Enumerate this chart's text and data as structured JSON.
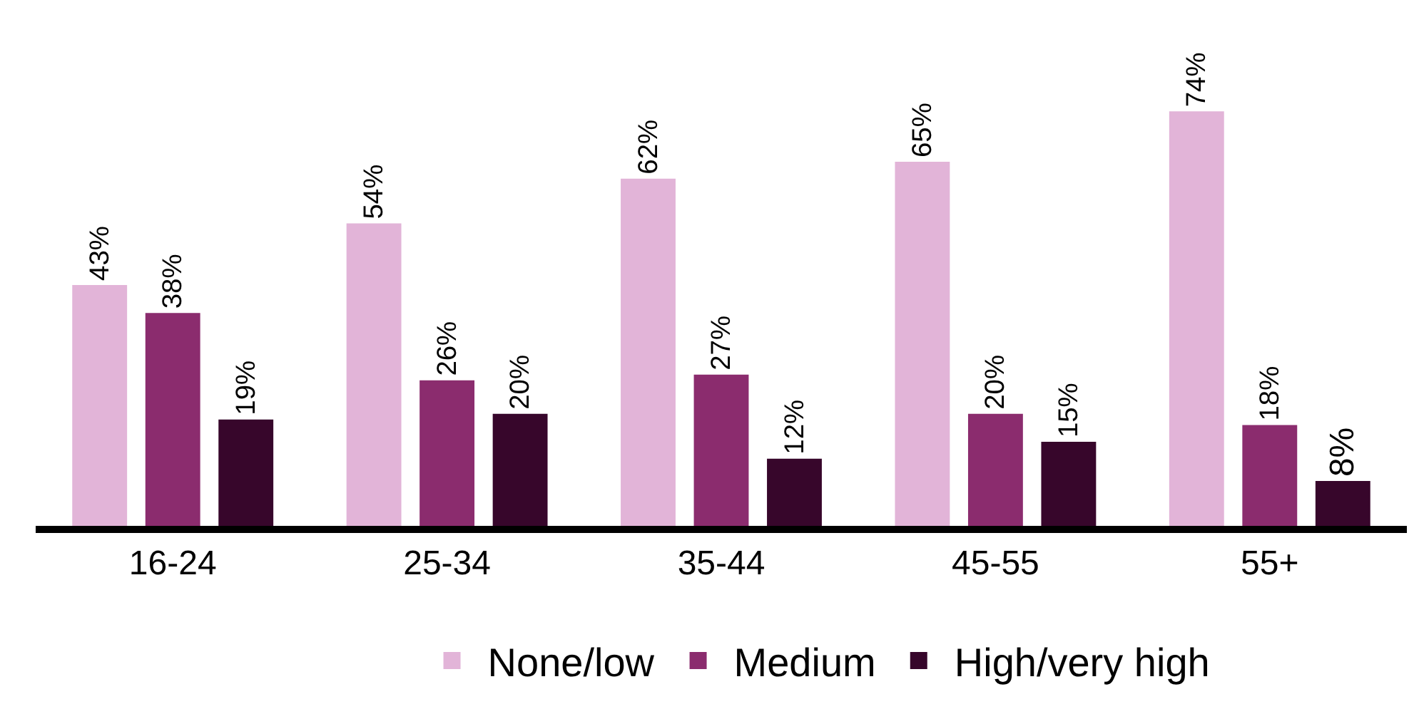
{
  "chart_data": {
    "type": "bar",
    "categories": [
      "16-24",
      "25-34",
      "35-44",
      "45-55",
      "55+"
    ],
    "series": [
      {
        "name": "None/low",
        "color": "#e2b4d8",
        "values": [
          43,
          54,
          62,
          65,
          74
        ],
        "value_labels": [
          "43%",
          "54%",
          "62%",
          "65%",
          "74%"
        ]
      },
      {
        "name": "Medium",
        "color": "#8b2c6e",
        "values": [
          38,
          26,
          27,
          20,
          18
        ],
        "value_labels": [
          "38%",
          "26%",
          "27%",
          "20%",
          "18%"
        ]
      },
      {
        "name": "High/very high",
        "color": "#37062b",
        "values": [
          19,
          20,
          12,
          15,
          8
        ],
        "value_labels": [
          "19%",
          "20%",
          "12%",
          "15%",
          "8%"
        ]
      }
    ],
    "legend": "bottom"
  }
}
